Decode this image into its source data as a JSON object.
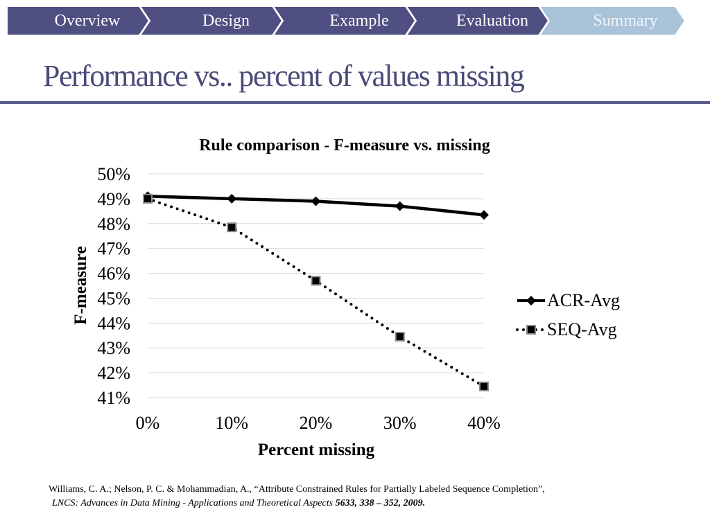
{
  "nav": {
    "tabs": [
      {
        "label": "Overview",
        "active": false
      },
      {
        "label": "Design",
        "active": false
      },
      {
        "label": "Example",
        "active": false
      },
      {
        "label": "Evaluation",
        "active": false
      },
      {
        "label": "Summary",
        "active": true
      }
    ],
    "colors": {
      "tab": "#4f4f82",
      "active_tab": "#a9c3d9",
      "active_text": "#f2f6fa",
      "tab_text": "#ffffff"
    }
  },
  "slide": {
    "title": "Performance vs.. percent of values missing"
  },
  "chart_data": {
    "type": "line",
    "title": "Rule comparison - F-measure vs. missing",
    "xlabel": "Percent missing",
    "ylabel": "F-measure",
    "categories": [
      "0%",
      "10%",
      "20%",
      "30%",
      "40%"
    ],
    "y_ticks": [
      "41%",
      "42%",
      "43%",
      "44%",
      "45%",
      "46%",
      "47%",
      "48%",
      "49%",
      "50%"
    ],
    "ylim": [
      41,
      50
    ],
    "grid": true,
    "legend_position": "right",
    "series": [
      {
        "name": "ACR-Avg",
        "values": [
          49.1,
          49.0,
          48.9,
          48.7,
          48.35
        ],
        "color": "#000000",
        "style": "solid",
        "marker": "diamond"
      },
      {
        "name": "SEQ-Avg",
        "values": [
          49.0,
          47.85,
          45.7,
          43.45,
          41.45
        ],
        "color": "#000000",
        "style": "dotted",
        "marker": "square"
      }
    ]
  },
  "citation": {
    "line1": "Williams, C. A.; Nelson, P. C. & Mohammadian, A., “Attribute Constrained Rules for Partially Labeled Sequence Completion”,",
    "line2_italic": "LNCS: Advances in Data Mining - Applications and Theoretical Aspects",
    "line2_bold": "5633, 338 – 352, 2009."
  }
}
